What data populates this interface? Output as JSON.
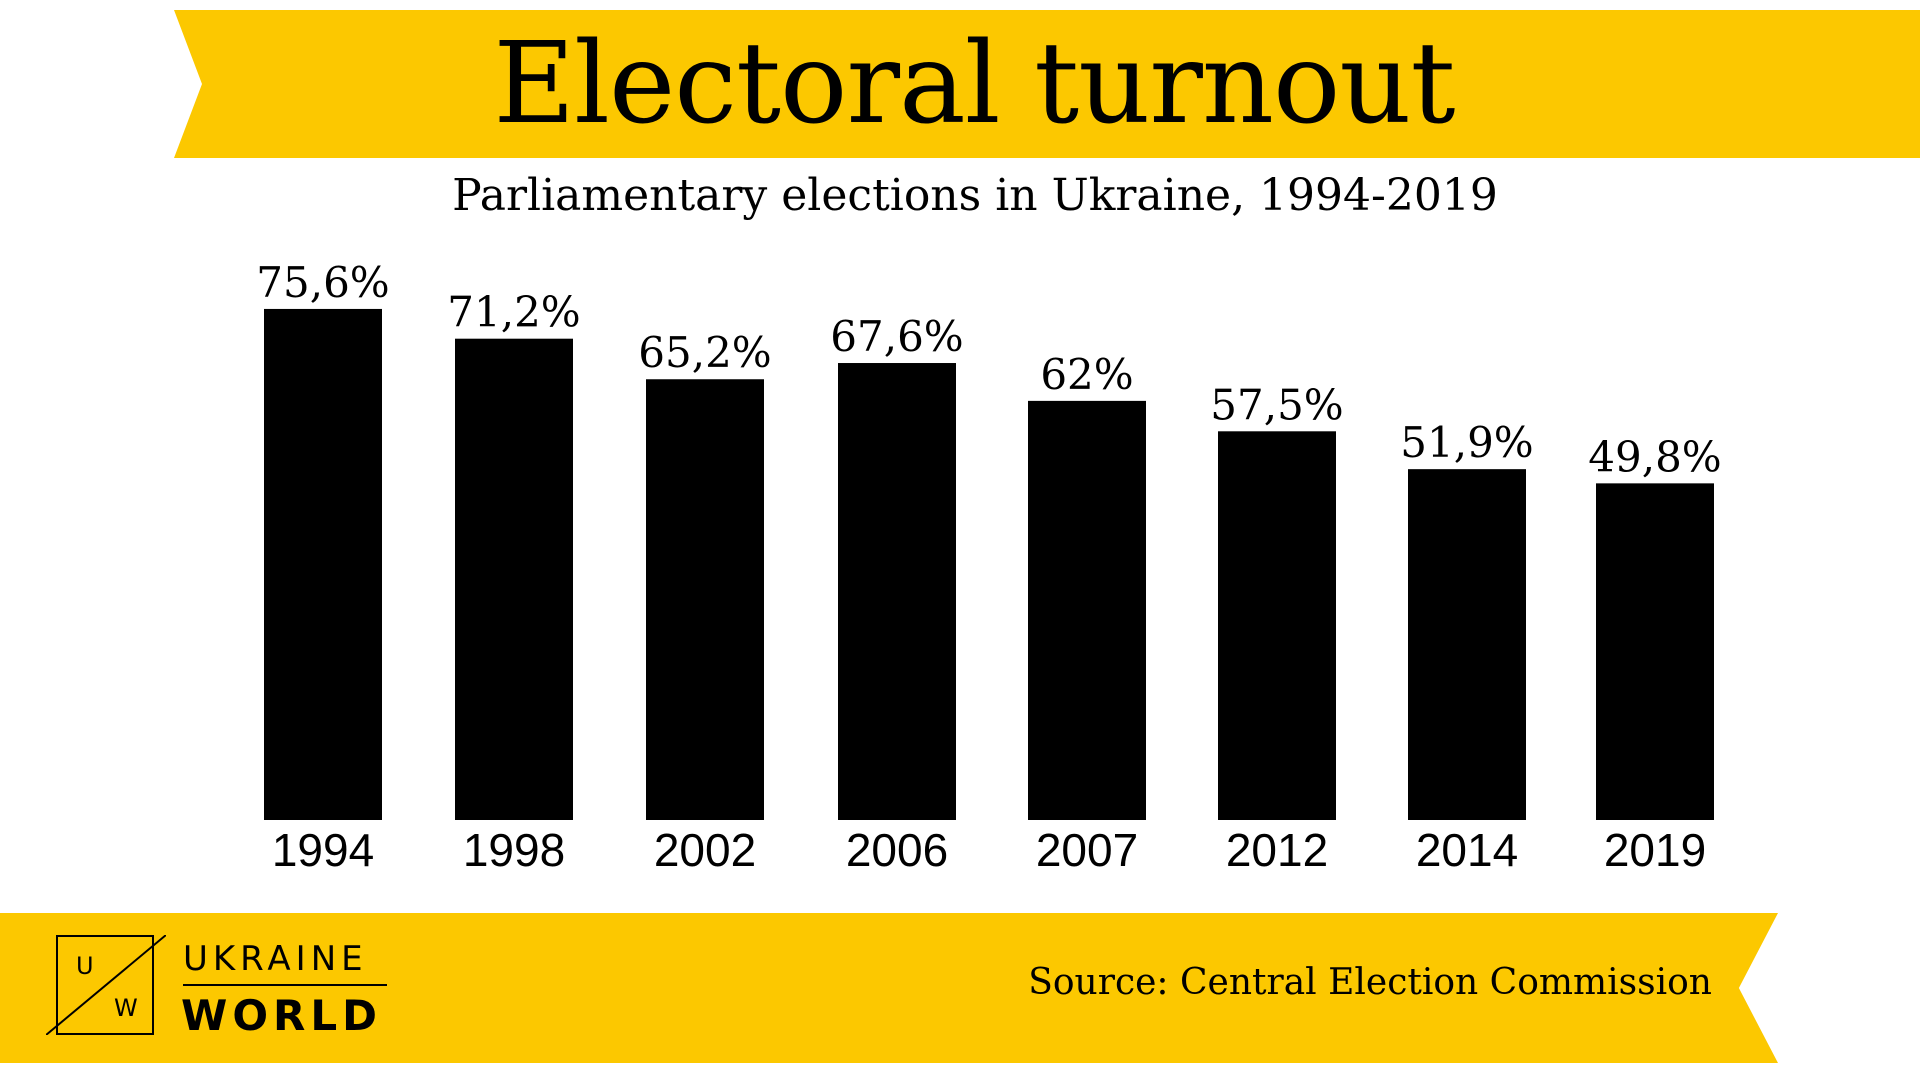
{
  "header": {
    "title": "Electoral turnout",
    "subtitle": "Parliamentary elections in Ukraine, 1994-2019"
  },
  "footer": {
    "logo": {
      "letter_top": "U",
      "letter_bottom": "W",
      "word_1": "UKRAINE",
      "word_2": "WORLD"
    },
    "source": "Source: Central Election Commission"
  },
  "colors": {
    "accent": "#fcc800",
    "bars": "#000000",
    "text": "#000000",
    "background": "#ffffff"
  },
  "chart_data": {
    "type": "bar",
    "title": "Electoral turnout",
    "subtitle": "Parliamentary elections in Ukraine, 1994-2019",
    "categories": [
      "1994",
      "1998",
      "2002",
      "2006",
      "2007",
      "2012",
      "2014",
      "2019"
    ],
    "values": [
      75.6,
      71.2,
      65.2,
      67.6,
      62,
      57.5,
      51.9,
      49.8
    ],
    "value_labels": [
      "75,6%",
      "71,2%",
      "65,2%",
      "67,6%",
      "62%",
      "57,5%",
      "51,9%",
      "49,8%"
    ],
    "xlabel": "",
    "ylabel": "",
    "ylim": [
      0,
      100
    ],
    "grid": false,
    "legend": "none"
  }
}
